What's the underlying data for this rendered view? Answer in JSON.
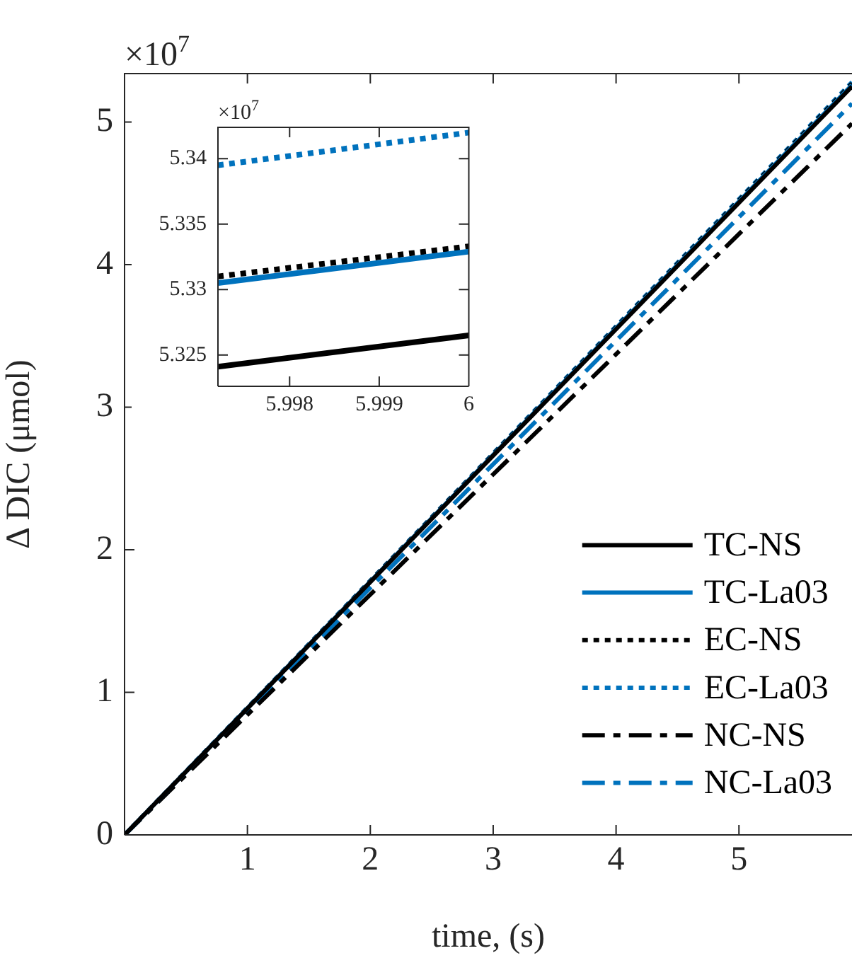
{
  "chart_data": [
    {
      "type": "line",
      "xlabel": "time, (s)",
      "ylabel": "Δ DIC (μmol)",
      "annotations": [
        "×10$^{7}$"
      ],
      "xlim": [
        0,
        5.92
      ],
      "ylim": [
        0,
        5.34
      ],
      "xticks": [
        1,
        2,
        3,
        4,
        5
      ],
      "yticks": [
        0,
        1,
        2,
        3,
        4,
        5
      ],
      "legend": "bottom right",
      "series": [
        {
          "name": "TC-NS",
          "color": "#000000",
          "line_style": "solid",
          "x": [
            0,
            5.92
          ],
          "values": [
            0,
            5.25
          ]
        },
        {
          "name": "TC-La03",
          "color": "#0072bd",
          "line_style": "solid",
          "x": [
            0,
            5.92
          ],
          "values": [
            0,
            5.26
          ]
        },
        {
          "name": "EC-NS",
          "color": "#000000",
          "line_style": "dotted",
          "x": [
            0,
            5.92
          ],
          "values": [
            0,
            5.27
          ]
        },
        {
          "name": "EC-La03",
          "color": "#0072bd",
          "line_style": "dotted",
          "x": [
            0,
            5.92
          ],
          "values": [
            0,
            5.28
          ]
        },
        {
          "name": "NC-NS",
          "color": "#000000",
          "line_style": "dashed",
          "x": [
            0,
            5.92
          ],
          "values": [
            0,
            4.99
          ]
        },
        {
          "name": "NC-La03",
          "color": "#0072bd",
          "line_style": "dashed",
          "x": [
            0,
            5.92
          ],
          "values": [
            0,
            5.13
          ]
        }
      ]
    },
    {
      "type": "line",
      "annotations": [
        "×10$^{7}$"
      ],
      "xlim": [
        5.9972,
        6
      ],
      "ylim": [
        5.3226,
        5.3424
      ],
      "xticks": [
        5.998,
        5.999,
        6
      ],
      "yticks": [
        5.325,
        5.33,
        5.335,
        5.34
      ],
      "series": [
        {
          "color": "#000000",
          "line_style": "solid",
          "x": [
            5.9972,
            6
          ],
          "values": [
            5.3241,
            5.3265
          ]
        },
        {
          "color": "#0072bd",
          "line_style": "solid",
          "x": [
            5.9972,
            6
          ],
          "values": [
            5.3305,
            5.3329
          ]
        },
        {
          "color": "#000000",
          "line_style": "dotted",
          "x": [
            5.9972,
            6
          ],
          "values": [
            5.331,
            5.3333
          ]
        },
        {
          "color": "#0072bd",
          "line_style": "dotted",
          "x": [
            5.9972,
            6
          ],
          "values": [
            5.3395,
            5.342
          ]
        }
      ]
    }
  ]
}
